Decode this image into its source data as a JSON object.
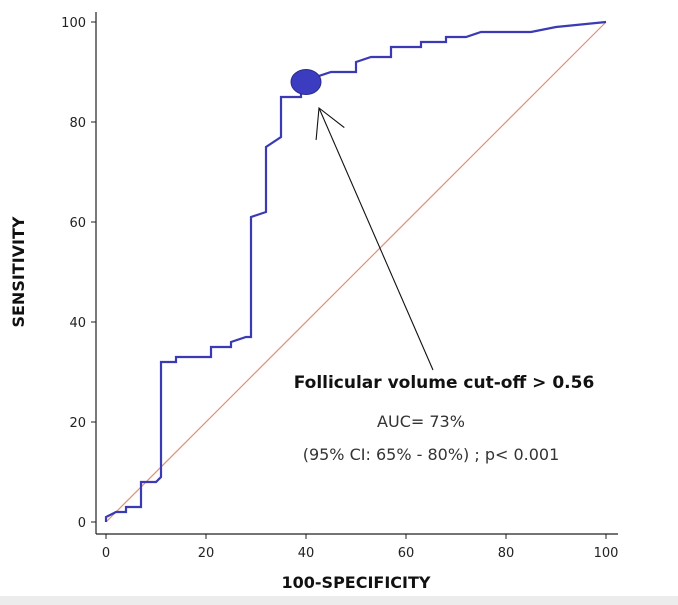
{
  "chart_data": {
    "type": "line",
    "xlabel": "100-SPECIFICITY",
    "ylabel": "SENSITIVITY",
    "xlim": [
      0,
      100
    ],
    "ylim": [
      0,
      100
    ],
    "xticks": [
      0,
      20,
      40,
      60,
      80,
      100
    ],
    "yticks": [
      0,
      20,
      40,
      60,
      80,
      100
    ],
    "grid": false,
    "series": [
      {
        "color": "#3a3ab4",
        "x": [
          0,
          0,
          2,
          4,
          4,
          7,
          7,
          10,
          11,
          11,
          14,
          14,
          17,
          21,
          21,
          25,
          25,
          28,
          29,
          29,
          32,
          32,
          32,
          35,
          35,
          35,
          39,
          39,
          40,
          42,
          45,
          50,
          50,
          53,
          57,
          57,
          63,
          63,
          68,
          68,
          72,
          75,
          80,
          85,
          90,
          100
        ],
        "y": [
          0,
          1,
          2,
          2,
          3,
          3,
          8,
          8,
          9,
          32,
          32,
          33,
          33,
          33,
          35,
          35,
          36,
          37,
          37,
          61,
          62,
          62,
          75,
          77,
          78,
          85,
          85,
          86,
          87,
          89,
          90,
          90,
          92,
          93,
          93,
          95,
          95,
          96,
          96,
          97,
          97,
          98,
          98,
          98,
          99,
          100
        ]
      }
    ],
    "reference_line": {
      "x": [
        0,
        100
      ],
      "y": [
        0,
        100
      ],
      "color": "#e0907a"
    },
    "cutoff_point": {
      "x": 40,
      "y": 88,
      "color": "#3c3cc0"
    },
    "annotations": {
      "cutoff_label": "Follicular volume cut-off > 0.56",
      "auc": "AUC= 73%",
      "ci": "(95% CI: 65% - 80%) ; p< 0.001"
    }
  }
}
